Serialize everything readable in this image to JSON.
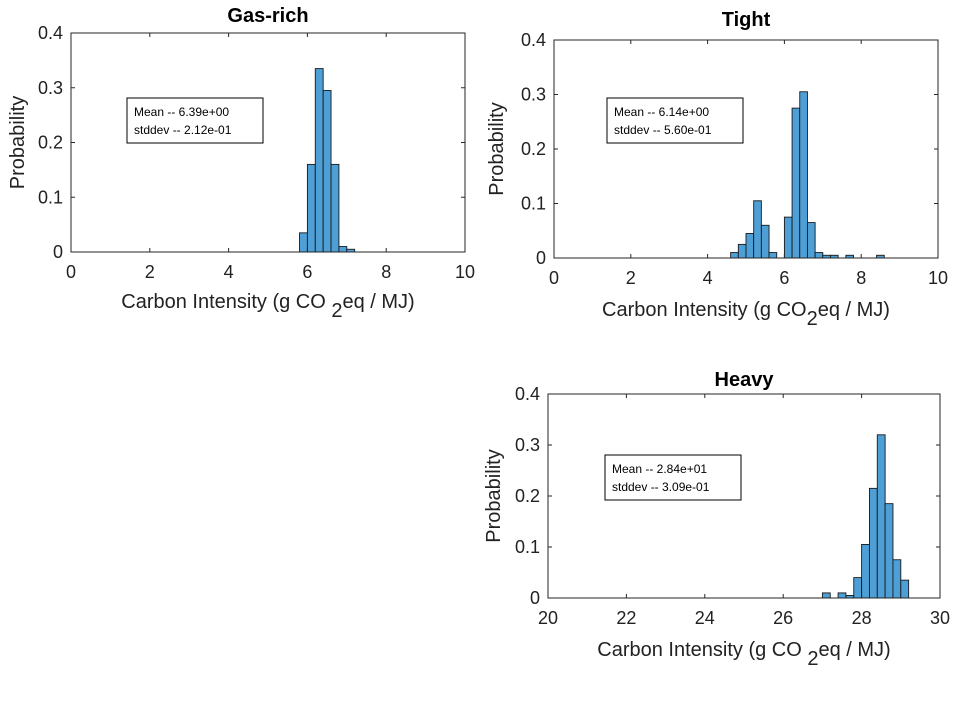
{
  "colors": {
    "bar_fill": "#4d9fd6",
    "bar_edge": "#1a1a1a",
    "axis": "#262626",
    "text": "#222222"
  },
  "chart_data": [
    {
      "type": "bar",
      "title": "Gas-rich",
      "xlabel_main": "Carbon Intensity (g CO ",
      "xlabel_sub": "2",
      "xlabel_tail": "eq / MJ)",
      "ylabel": "Probability",
      "xlim": [
        0,
        10
      ],
      "ylim": [
        0,
        0.4
      ],
      "xticks": [
        "0",
        "2",
        "4",
        "6",
        "8",
        "10"
      ],
      "yticks": [
        "0",
        "0.1",
        "0.2",
        "0.3",
        "0.4"
      ],
      "stats": [
        "Mean -- 6.39e+00",
        "stddev -- 2.12e-01"
      ],
      "bin_width": 0.2,
      "bins": [
        {
          "x0": 5.8,
          "value": 0.035
        },
        {
          "x0": 6.0,
          "value": 0.16
        },
        {
          "x0": 6.2,
          "value": 0.335
        },
        {
          "x0": 6.4,
          "value": 0.295
        },
        {
          "x0": 6.6,
          "value": 0.16
        },
        {
          "x0": 6.8,
          "value": 0.01
        },
        {
          "x0": 7.0,
          "value": 0.005
        }
      ]
    },
    {
      "type": "bar",
      "title": "Tight",
      "xlabel_main": "Carbon Intensity (g CO",
      "xlabel_sub": "2",
      "xlabel_tail": "eq / MJ)",
      "ylabel": "Probability",
      "xlim": [
        0,
        10
      ],
      "ylim": [
        0,
        0.4
      ],
      "xticks": [
        "0",
        "2",
        "4",
        "6",
        "8",
        "10"
      ],
      "yticks": [
        "0",
        "0.1",
        "0.2",
        "0.3",
        "0.4"
      ],
      "stats": [
        "Mean -- 6.14e+00",
        "stddev -- 5.60e-01"
      ],
      "bin_width": 0.2,
      "bins": [
        {
          "x0": 4.6,
          "value": 0.01
        },
        {
          "x0": 4.8,
          "value": 0.025
        },
        {
          "x0": 5.0,
          "value": 0.045
        },
        {
          "x0": 5.2,
          "value": 0.105
        },
        {
          "x0": 5.4,
          "value": 0.06
        },
        {
          "x0": 5.6,
          "value": 0.01
        },
        {
          "x0": 6.0,
          "value": 0.075
        },
        {
          "x0": 6.2,
          "value": 0.275
        },
        {
          "x0": 6.4,
          "value": 0.305
        },
        {
          "x0": 6.6,
          "value": 0.065
        },
        {
          "x0": 6.8,
          "value": 0.01
        },
        {
          "x0": 7.0,
          "value": 0.005
        },
        {
          "x0": 7.2,
          "value": 0.005
        },
        {
          "x0": 7.6,
          "value": 0.005
        },
        {
          "x0": 8.4,
          "value": 0.005
        }
      ]
    },
    {
      "type": "bar",
      "title": "Heavy",
      "xlabel_main": "Carbon Intensity (g CO ",
      "xlabel_sub": "2",
      "xlabel_tail": "eq / MJ)",
      "ylabel": "Probability",
      "xlim": [
        20,
        30
      ],
      "ylim": [
        0,
        0.4
      ],
      "xticks": [
        "20",
        "22",
        "24",
        "26",
        "28",
        "30"
      ],
      "yticks": [
        "0",
        "0.1",
        "0.2",
        "0.3",
        "0.4"
      ],
      "stats": [
        "Mean -- 2.84e+01",
        "stddev -- 3.09e-01"
      ],
      "bin_width": 0.2,
      "bins": [
        {
          "x0": 27.0,
          "value": 0.01
        },
        {
          "x0": 27.4,
          "value": 0.01
        },
        {
          "x0": 27.6,
          "value": 0.005
        },
        {
          "x0": 27.8,
          "value": 0.04
        },
        {
          "x0": 28.0,
          "value": 0.105
        },
        {
          "x0": 28.2,
          "value": 0.215
        },
        {
          "x0": 28.4,
          "value": 0.32
        },
        {
          "x0": 28.6,
          "value": 0.185
        },
        {
          "x0": 28.8,
          "value": 0.075
        },
        {
          "x0": 29.0,
          "value": 0.035
        }
      ]
    }
  ]
}
